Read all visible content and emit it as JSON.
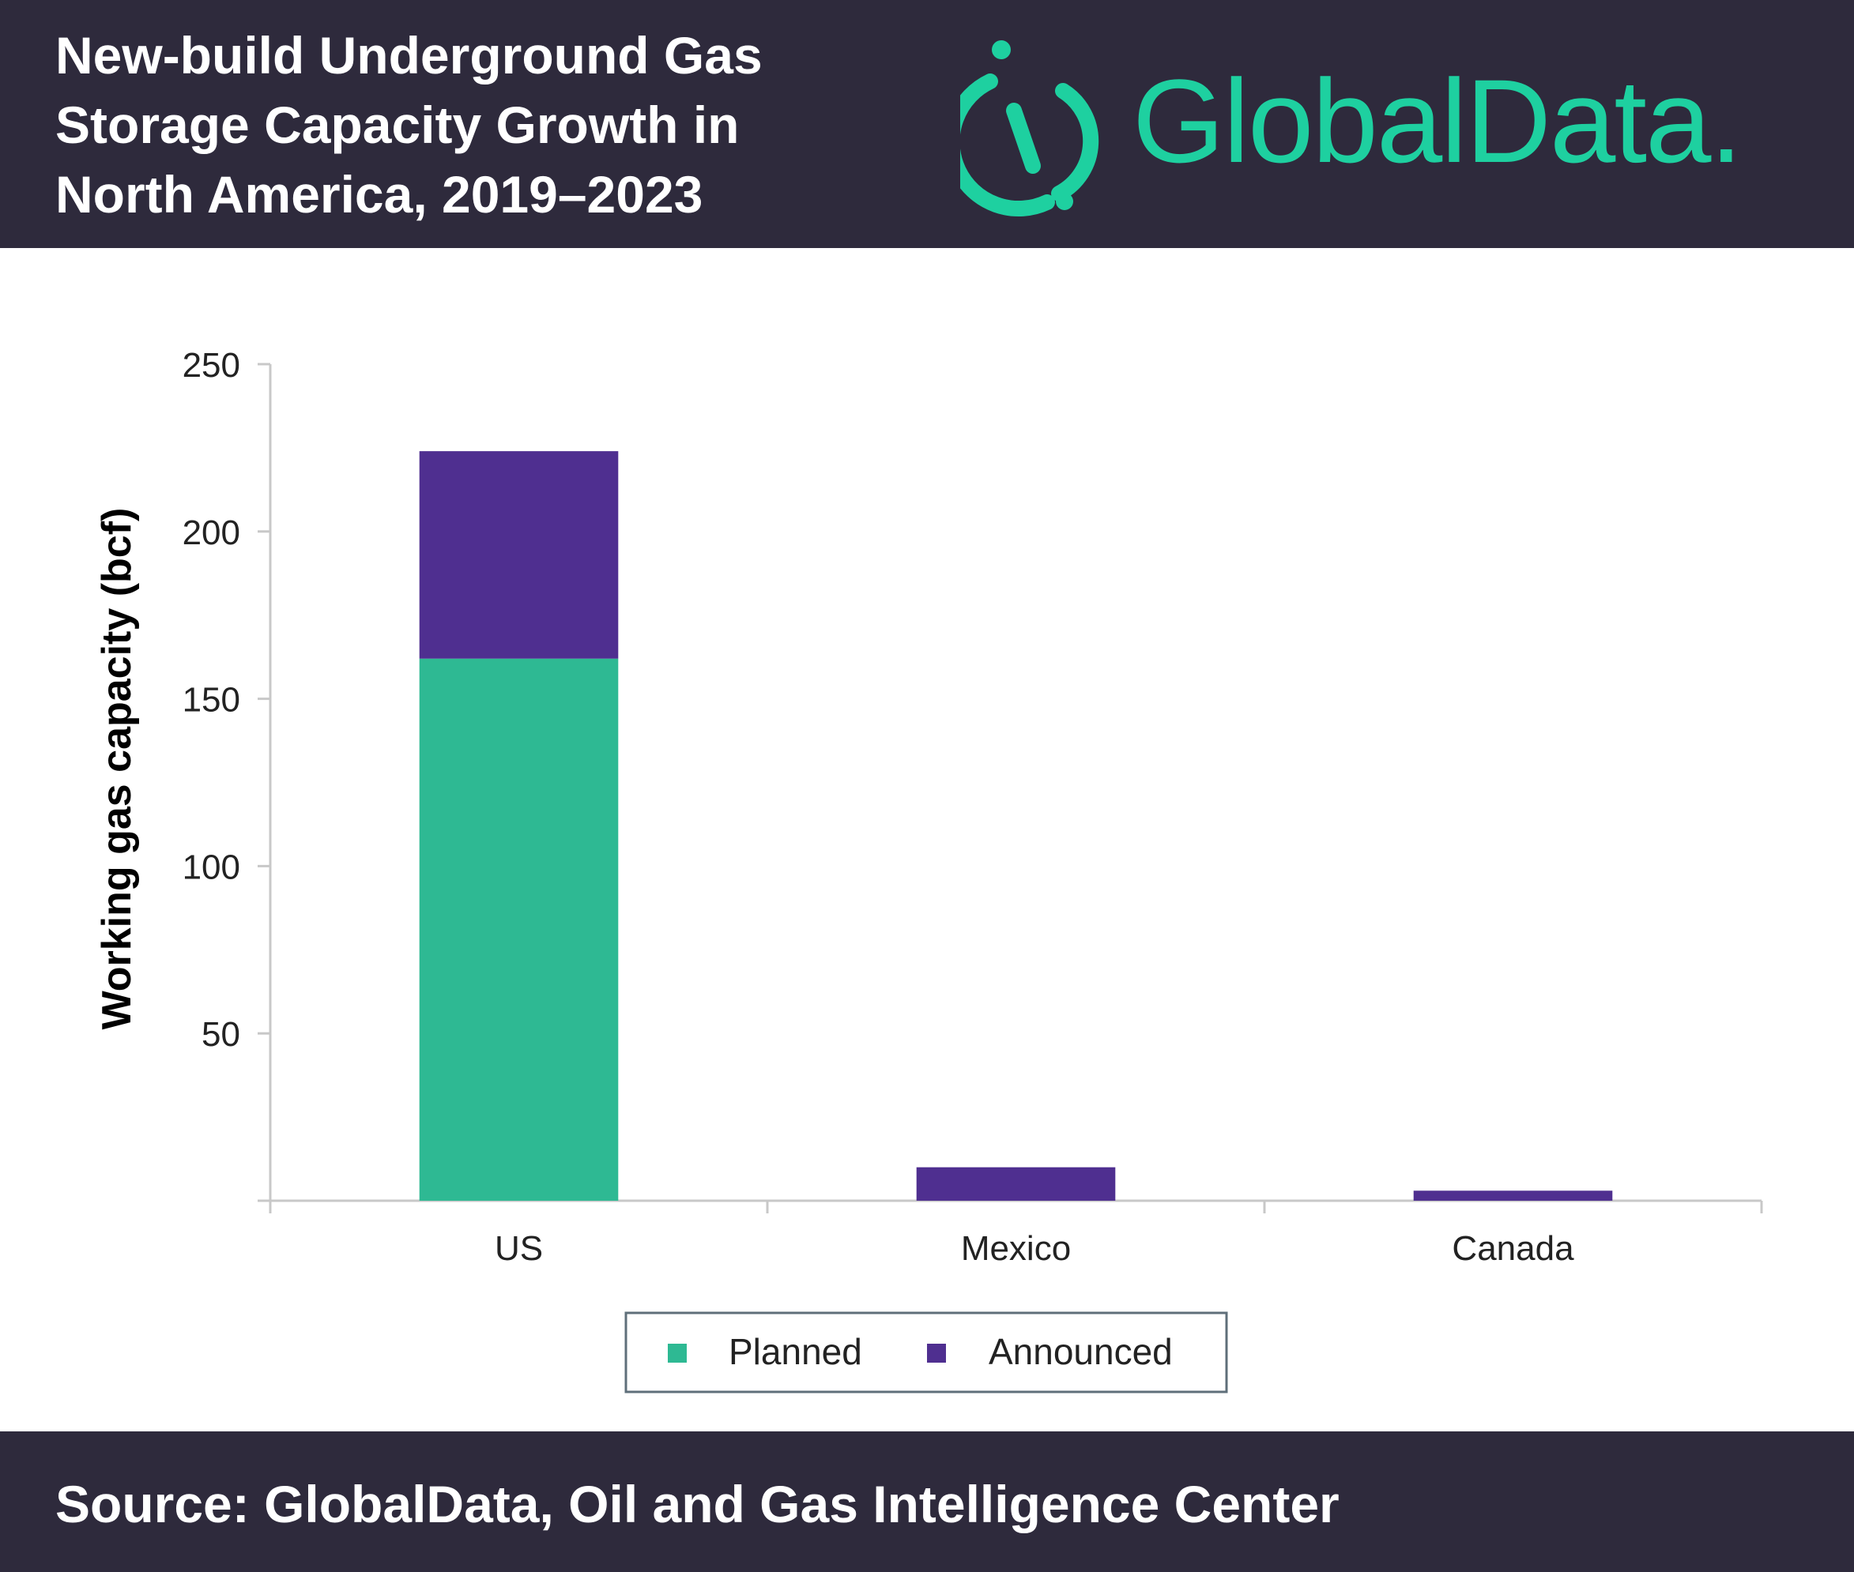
{
  "header": {
    "title_lines": [
      "New-build Underground Gas",
      "Storage Capacity Growth in",
      "North America, 2019–2023"
    ],
    "logo_text": "GlobalData."
  },
  "footer": {
    "source": "Source: GlobalData, Oil and Gas Intelligence Center"
  },
  "colors": {
    "header_bg": "#2e2a3c",
    "planned": "#2eb993",
    "announced": "#4f2f90",
    "logo": "#1ed0a0"
  },
  "chart_data": {
    "type": "bar",
    "stacked": true,
    "categories": [
      "US",
      "Mexico",
      "Canada"
    ],
    "series": [
      {
        "name": "Planned",
        "values": [
          162,
          0,
          0
        ]
      },
      {
        "name": "Announced",
        "values": [
          62,
          10,
          3
        ]
      }
    ],
    "ylabel": "Working gas capacity (bcf)",
    "ylim": [
      0,
      250
    ],
    "yticks": [
      50,
      100,
      150,
      200,
      250
    ],
    "grid": false,
    "legend": "bottom"
  }
}
